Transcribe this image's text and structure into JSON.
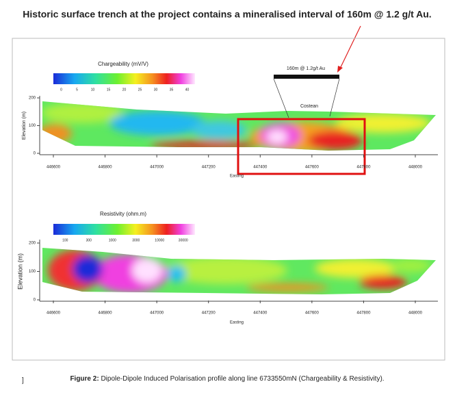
{
  "header": {
    "title": "Historic surface trench at the project contains a mineralised interval of 160m @ 1.2 g/t Au."
  },
  "figures": [
    {
      "colorbar_label": "Chargeability (mV/V)",
      "colorbar_ticks": [
        0,
        5,
        10,
        15,
        20,
        25,
        30,
        35,
        40
      ],
      "y_axis_label": "Elevation (m)",
      "y_ticks": [
        200,
        100,
        0
      ],
      "x_ticks": [
        446600,
        446800,
        447000,
        447200,
        447400,
        447600,
        447800,
        448000
      ],
      "x_axis_label": "Easting",
      "annotations": {
        "interval": "160m @ 1.2g/t Au",
        "costean": "Costean"
      }
    },
    {
      "colorbar_label": "Resistivity (ohm.m)",
      "colorbar_ticks": [
        100,
        300,
        1000,
        3000,
        10000,
        30000
      ],
      "y_axis_label": "Elevation (m)",
      "y_ticks": [
        200,
        100,
        0
      ],
      "x_ticks": [
        446600,
        446800,
        447000,
        447200,
        447400,
        447600,
        447800,
        448000
      ],
      "x_axis_label": "Easting"
    }
  ],
  "caption": {
    "label": "Figure 2:",
    "text": " Dipole-Dipole Induced Polarisation profile along line 6733550mN (Chargeability & Resistivity)."
  }
}
